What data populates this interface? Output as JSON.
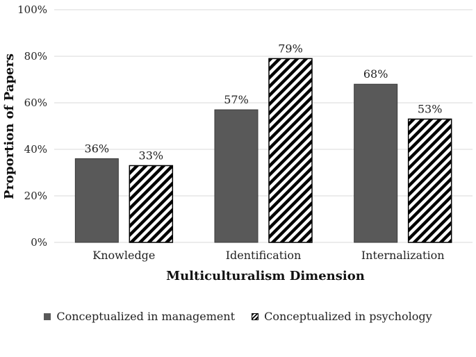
{
  "chart_data": {
    "type": "bar",
    "categories": [
      "Knowledge",
      "Identification",
      "Internalization"
    ],
    "series": [
      {
        "name": "Conceptualized in management",
        "values": [
          36,
          57,
          68
        ],
        "labels": [
          "36%",
          "57%",
          "68%"
        ],
        "color": "#595959",
        "fill": "solid"
      },
      {
        "name": "Conceptualized in psychology",
        "values": [
          33,
          79,
          53
        ],
        "labels": [
          "33%",
          "79%",
          "53%"
        ],
        "color": "#000000",
        "fill": "diagonal-hatch"
      }
    ],
    "title": "",
    "xlabel": "Multiculturalism Dimension",
    "ylabel": "Proportion of Papers",
    "ylim": [
      0,
      100
    ],
    "yticks": [
      0,
      20,
      40,
      60,
      80,
      100
    ],
    "ytick_labels": [
      "0%",
      "20%",
      "40%",
      "60%",
      "80%",
      "100%"
    ],
    "grid": true,
    "legend_position": "bottom"
  }
}
